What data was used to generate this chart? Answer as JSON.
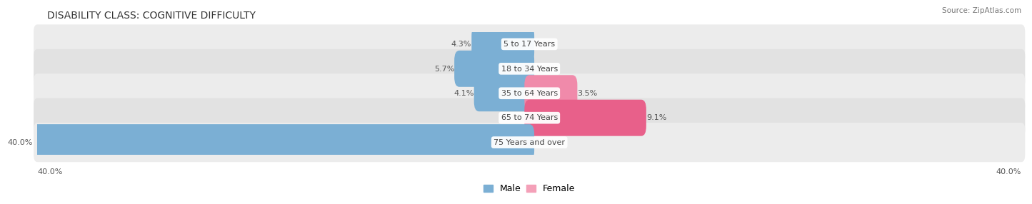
{
  "title": "DISABILITY CLASS: COGNITIVE DIFFICULTY",
  "source": "Source: ZipAtlas.com",
  "categories": [
    "5 to 17 Years",
    "18 to 34 Years",
    "35 to 64 Years",
    "65 to 74 Years",
    "75 Years and over"
  ],
  "male_values": [
    4.3,
    5.7,
    4.1,
    0.0,
    40.0
  ],
  "female_values": [
    0.0,
    0.0,
    3.5,
    9.1,
    0.0
  ],
  "male_color": "#7bafd4",
  "female_color_light": "#f4a0b8",
  "female_color_dark": "#e8608a",
  "row_colors": [
    "#ececec",
    "#e2e2e2"
  ],
  "max_value": 40.0,
  "legend_male": "Male",
  "legend_female": "Female",
  "title_fontsize": 10,
  "label_fontsize": 8,
  "category_fontsize": 8,
  "source_fontsize": 7.5,
  "axis_label_fontsize": 8
}
